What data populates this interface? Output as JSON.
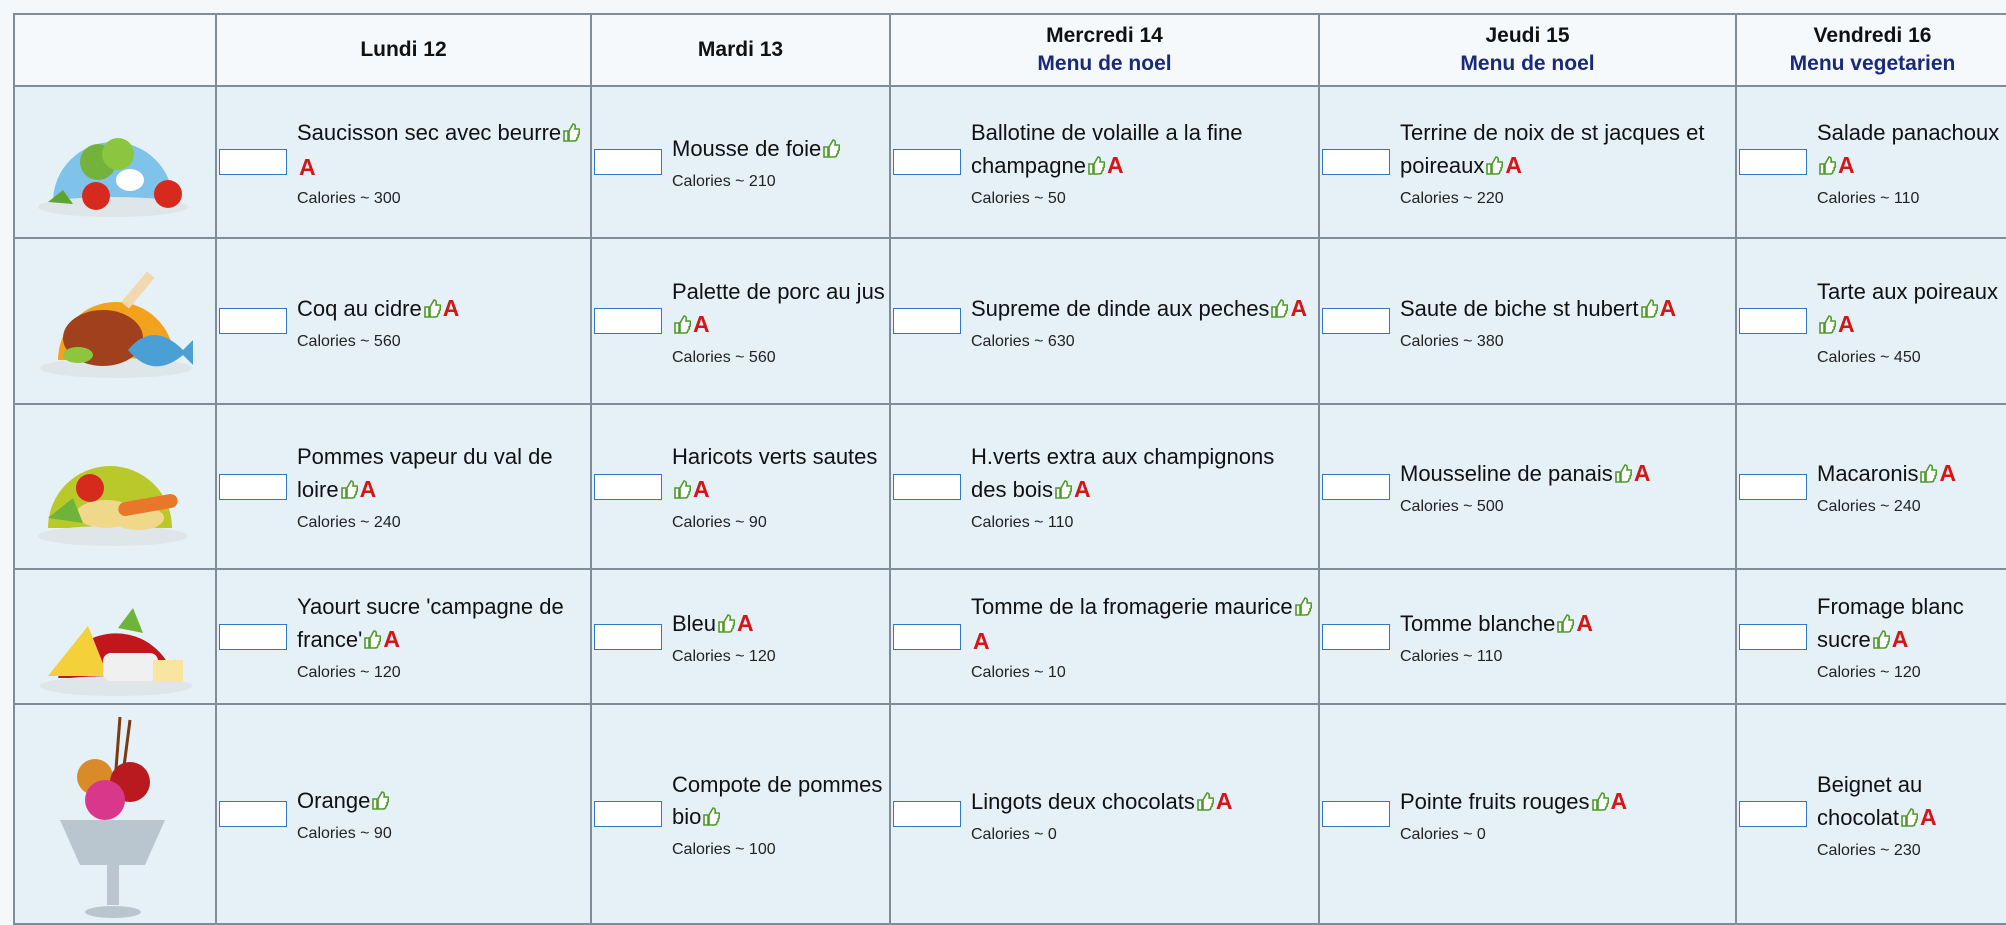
{
  "header": {
    "days": [
      {
        "day": "Lundi 12"
      },
      {
        "day": "Mardi 13"
      },
      {
        "day": "Mercredi 14",
        "menu": "Menu de noel"
      },
      {
        "day": "Jeudi 15",
        "menu": "Menu de noel"
      },
      {
        "day": "Vendredi 16",
        "menu": "Menu vegetarien"
      }
    ]
  },
  "rows": [
    [
      {
        "name": "Saucisson sec avec beurre",
        "badge": "A",
        "calories": "Calories ~ 300"
      },
      {
        "name": "Mousse de foie",
        "calories": "Calories ~ 210"
      },
      {
        "name": "Ballotine de volaille a la fine champagne",
        "badge": "A",
        "calories": "Calories ~ 50"
      },
      {
        "name": "Terrine de noix de st jacques et poireaux",
        "badge": "A",
        "calories": "Calories ~ 220"
      },
      {
        "name": "Salade panachoux",
        "badge": "A",
        "calories": "Calories ~ 110"
      }
    ],
    [
      {
        "name": "Coq au cidre",
        "badge": "A",
        "calories": "Calories ~ 560"
      },
      {
        "name": "Palette de porc au jus",
        "badge": "A",
        "calories": "Calories ~ 560"
      },
      {
        "name": "Supreme de dinde aux peches",
        "badge": "A",
        "calories": "Calories ~ 630"
      },
      {
        "name": "Saute de biche st hubert",
        "badge": "A",
        "calories": "Calories ~ 380"
      },
      {
        "name": "Tarte aux poireaux",
        "badge": "A",
        "calories": "Calories ~ 450"
      }
    ],
    [
      {
        "name": "Pommes vapeur du val de loire",
        "badge": "A",
        "calories": "Calories ~ 240"
      },
      {
        "name": "Haricots verts sautes",
        "badge": "A",
        "calories": "Calories ~ 90"
      },
      {
        "name": "H.verts extra aux champignons des bois",
        "badge": "A",
        "calories": "Calories ~ 110"
      },
      {
        "name": "Mousseline de panais",
        "badge": "A",
        "calories": "Calories ~ 500"
      },
      {
        "name": "Macaronis",
        "badge": "A",
        "calories": "Calories ~ 240"
      }
    ],
    [
      {
        "name": "Yaourt sucre 'campagne de france'",
        "badge": "A",
        "calories": "Calories ~ 120"
      },
      {
        "name": "Bleu",
        "badge": "A",
        "calories": "Calories ~ 120"
      },
      {
        "name": "Tomme de la fromagerie maurice",
        "badge": "A",
        "calories": "Calories ~ 10"
      },
      {
        "name": "Tomme blanche",
        "badge": "A",
        "calories": "Calories ~ 110"
      },
      {
        "name": "Fromage blanc sucre",
        "badge": "A",
        "calories": "Calories ~ 120"
      }
    ],
    [
      {
        "name": "Orange",
        "calories": "Calories ~ 90"
      },
      {
        "name": "Compote de pommes bio",
        "calories": "Calories ~ 100"
      },
      {
        "name": "Lingots deux chocolats",
        "badge": "A",
        "calories": "Calories ~ 0"
      },
      {
        "name": "Pointe fruits rouges",
        "badge": "A",
        "calories": "Calories ~ 0"
      },
      {
        "name": "Beignet au chocolat",
        "badge": "A",
        "calories": "Calories ~ 230"
      }
    ]
  ]
}
